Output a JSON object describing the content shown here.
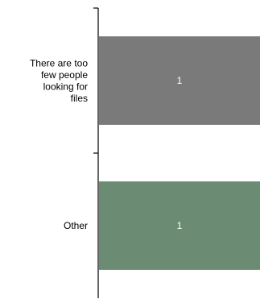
{
  "chart_data": {
    "type": "bar",
    "orientation": "horizontal",
    "categories": [
      [
        "There are too",
        "few people",
        "looking for",
        "files"
      ],
      [
        "Other"
      ]
    ],
    "values": [
      1,
      1
    ],
    "data_labels": [
      "1",
      "1"
    ],
    "bar_colors": [
      "#7a7a7a",
      "#6b8c73"
    ],
    "xlim": [
      0,
      1
    ],
    "grid": false,
    "legend": "none",
    "title": "",
    "xlabel": "",
    "ylabel": ""
  }
}
